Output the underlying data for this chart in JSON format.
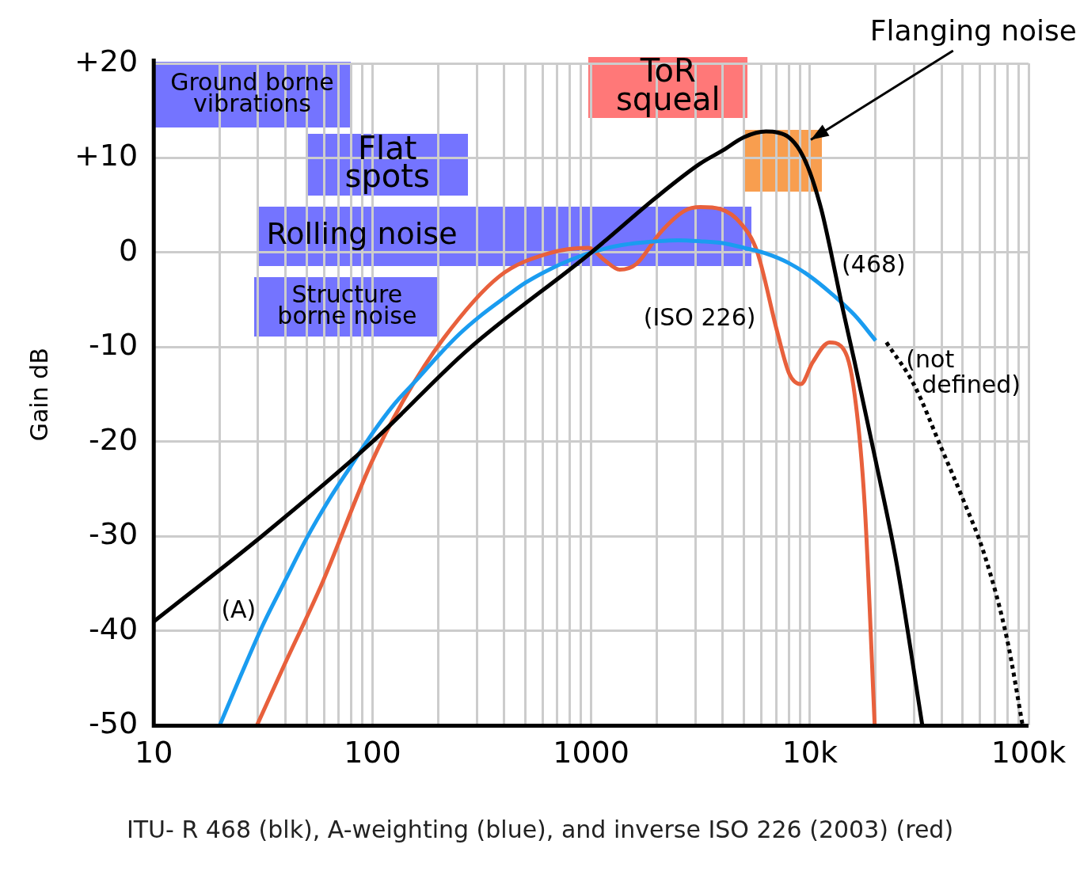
{
  "chart_data": {
    "type": "line",
    "ylabel": "Gain dB",
    "log": "x",
    "grid": true,
    "legend": false,
    "marker": "none",
    "xlim": [
      10,
      100000
    ],
    "xticks": [
      10,
      {
        "value": 20,
        "label": null
      },
      {
        "value": 30,
        "label": null
      },
      {
        "value": 40,
        "label": null
      },
      {
        "value": 50,
        "label": null
      },
      {
        "value": 60,
        "label": null
      },
      {
        "value": 70,
        "label": null
      },
      {
        "value": 80,
        "label": null
      },
      {
        "value": 90,
        "label": null
      },
      100,
      {
        "value": 200,
        "label": null
      },
      {
        "value": 300,
        "label": null
      },
      {
        "value": 400,
        "label": null
      },
      {
        "value": 500,
        "label": null
      },
      {
        "value": 600,
        "label": null
      },
      {
        "value": 700,
        "label": null
      },
      {
        "value": 800,
        "label": null
      },
      {
        "value": 900,
        "label": null
      },
      1000,
      {
        "value": 2000,
        "label": null
      },
      {
        "value": 3000,
        "label": null
      },
      {
        "value": 4000,
        "label": null
      },
      {
        "value": 5000,
        "label": null
      },
      {
        "value": 6000,
        "label": null
      },
      {
        "value": 7000,
        "label": null
      },
      {
        "value": 8000,
        "label": null
      },
      {
        "value": 9000,
        "label": null
      },
      {
        "value": 10000,
        "label": "10k"
      },
      {
        "value": 20000,
        "label": null
      },
      {
        "value": 30000,
        "label": null
      },
      {
        "value": 40000,
        "label": null
      },
      {
        "value": 50000,
        "label": null
      },
      {
        "value": 60000,
        "label": null
      },
      {
        "value": 70000,
        "label": null
      },
      {
        "value": 80000,
        "label": null
      },
      {
        "value": 90000,
        "label": null
      },
      {
        "value": 100000,
        "label": "100k"
      }
    ],
    "ylim": [
      -50,
      20
    ],
    "yticks": [
      -50,
      -40,
      -30,
      -20,
      -10,
      0,
      {
        "value": 10,
        "label": "+10"
      },
      {
        "value": 20,
        "label": "+20"
      }
    ],
    "series": [
      {
        "color": "#000000",
        "line_style": "solid",
        "x": [
          10,
          31.5,
          100,
          272,
          1000,
          2000,
          3150,
          4000,
          5000,
          6300,
          7100,
          8000,
          9000,
          10000,
          11300,
          12500,
          14000,
          16000,
          20000,
          25000,
          32700
        ],
        "values": [
          -39,
          -29.9,
          -20,
          -10.3,
          0,
          5.9,
          9.4,
          10.8,
          12.2,
          12.8,
          12.7,
          12.2,
          10.8,
          8.5,
          4.5,
          0,
          -5.5,
          -11.5,
          -22,
          -33,
          -50
        ]
      },
      {
        "color": "#1a9cf0",
        "line_style": "solid",
        "x": [
          20,
          25,
          31.5,
          40,
          50,
          63,
          80,
          100,
          125,
          160,
          200,
          250,
          315,
          400,
          500,
          630,
          800,
          1000,
          1250,
          1600,
          2000,
          2500,
          3150,
          4000,
          5000,
          6300,
          8000,
          10000,
          12500,
          16000,
          20000
        ],
        "values": [
          -50,
          -44.7,
          -39.4,
          -34.6,
          -30.2,
          -26.2,
          -22.5,
          -19.1,
          -16.1,
          -13.4,
          -10.9,
          -8.6,
          -6.6,
          -4.8,
          -3.2,
          -1.9,
          -0.8,
          0,
          0.6,
          1,
          1.2,
          1.3,
          1.2,
          1,
          0.5,
          -0.1,
          -1.1,
          -2.5,
          -4.3,
          -6.6,
          -9.3
        ]
      },
      {
        "color": "#e8603c",
        "line_style": "solid",
        "x": [
          29.6,
          38.8,
          59,
          98,
          138,
          211,
          381,
          636,
          972,
          1150,
          1350,
          1610,
          2070,
          2670,
          3160,
          3900,
          4870,
          5740,
          7080,
          8050,
          9100,
          10300,
          12300,
          13900,
          15800,
          17800,
          19800
        ],
        "values": [
          -50,
          -44,
          -34.9,
          -22.4,
          -15.7,
          -9.1,
          -2.5,
          -0.1,
          0.5,
          -0.8,
          -1.8,
          -1.2,
          2.1,
          4.4,
          4.8,
          4.6,
          3,
          0.1,
          -8.3,
          -12.8,
          -13.9,
          -11.6,
          -9.5,
          -9.9,
          -14,
          -26.5,
          -50
        ]
      },
      {
        "color": "#000000",
        "line_style": "dotted",
        "x": [
          22400,
          30000,
          40000,
          50000,
          63000,
          80000,
          94000
        ],
        "values": [
          -9.5,
          -14,
          -20.7,
          -26,
          -32,
          -41,
          -50
        ]
      }
    ],
    "annotations": [
      "Ground borne vibrations",
      "Flat spots",
      "Rolling noise",
      "Structure borne noise",
      "ToR squeal",
      "Flanging noise",
      "(A)",
      "(468)",
      "(ISO 226)",
      "(not defined)",
      "ITU- R 468 (blk), A-weighting (blue), and inverse ISO 226 (2003) (red)"
    ]
  }
}
